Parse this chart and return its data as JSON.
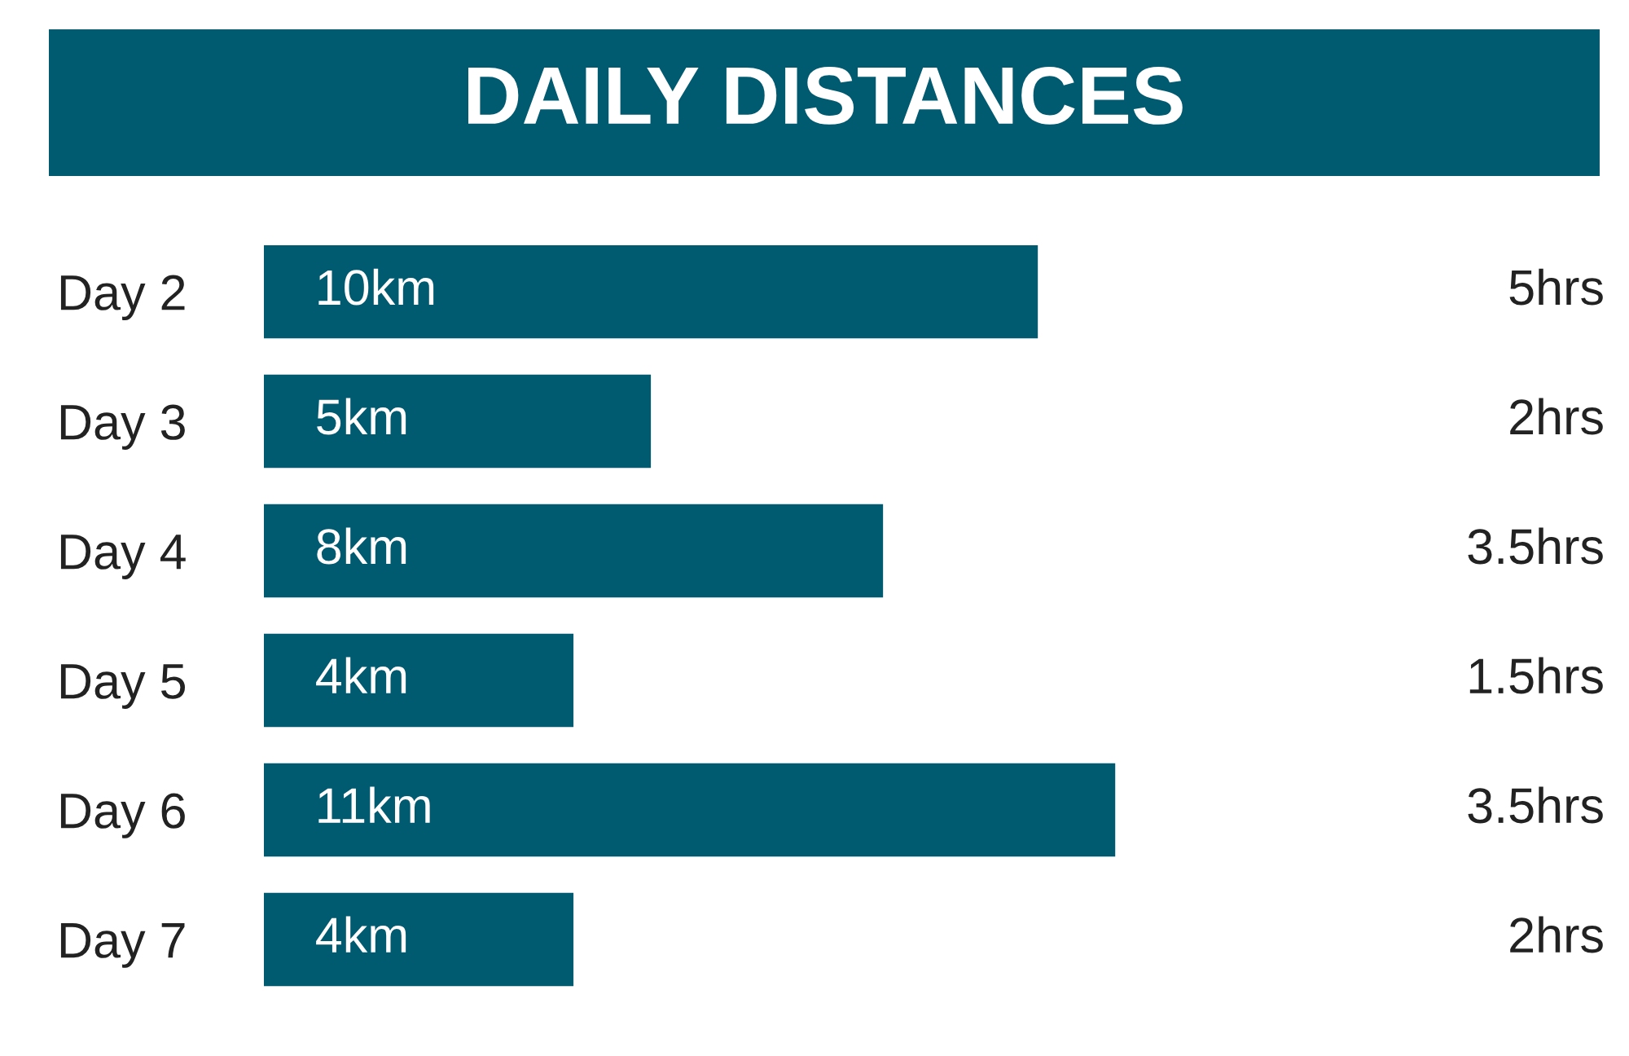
{
  "chart_data": {
    "type": "bar",
    "orientation": "horizontal",
    "title": "DAILY DISTANCES",
    "categories": [
      "Day 2",
      "Day 3",
      "Day 4",
      "Day 5",
      "Day 6",
      "Day 7"
    ],
    "values": [
      10,
      5,
      8,
      4,
      11,
      4
    ],
    "value_labels": [
      "10km",
      "5km",
      "8km",
      "4km",
      "11km",
      "4km"
    ],
    "color": "#005a70",
    "tick_labels": "y",
    "annotations": [
      "5hrs",
      "2hrs",
      "3.5hrs",
      "1.5hrs",
      "3.5hrs",
      "2hrs"
    ],
    "grid": false,
    "legend": false
  }
}
